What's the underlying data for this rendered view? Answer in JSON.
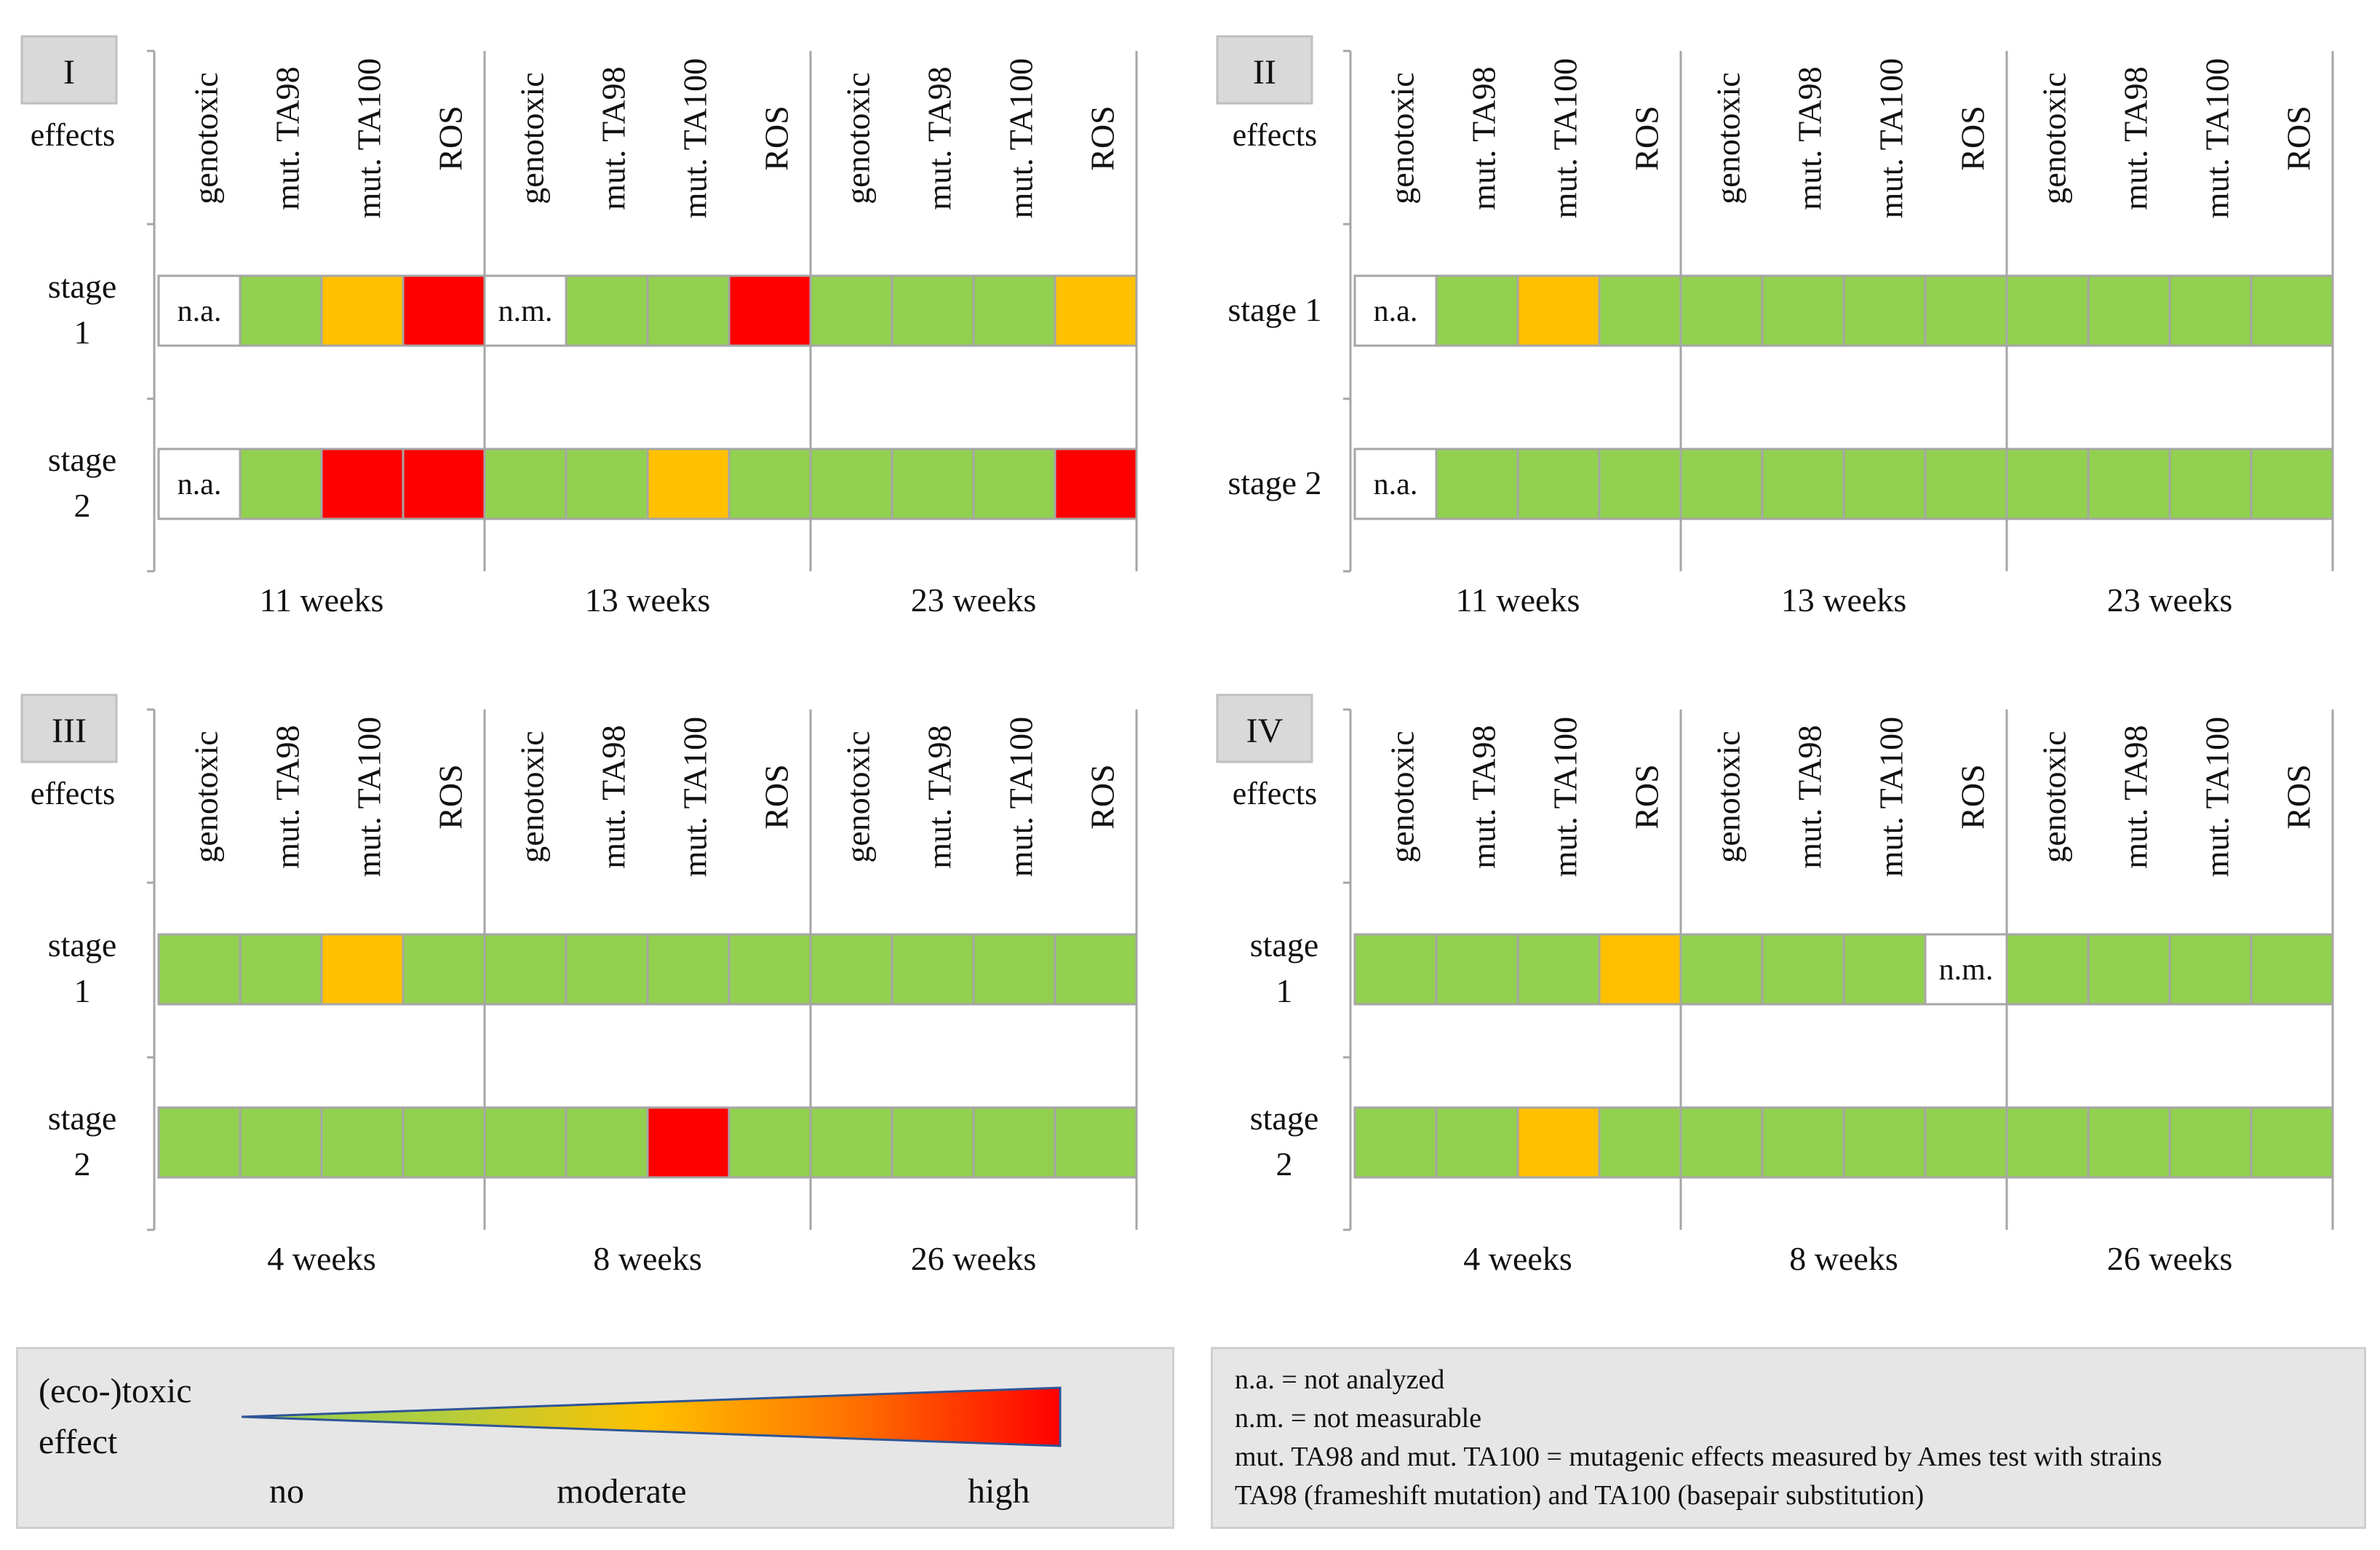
{
  "colors": {
    "none": "#92d050",
    "moderate": "#ffc000",
    "high": "#ff0000",
    "blank": "#ffffff",
    "grid": "#a6a6a6",
    "label_box": "#d9d9d9"
  },
  "effects_label": "effects",
  "stage_labels_split": [
    [
      "stage",
      "1"
    ],
    [
      "stage",
      "2"
    ]
  ],
  "stage_labels_inline": [
    "stage 1",
    "stage 2"
  ],
  "columns": [
    "genotoxic",
    "mut. TA98",
    "mut. TA100",
    "ROS"
  ],
  "chart_data": [
    {
      "type": "heatmap",
      "panel": "I",
      "groups": [
        "11 weeks",
        "13 weeks",
        "23 weeks"
      ],
      "rows": [
        "stage 1",
        "stage 2"
      ],
      "cells": [
        [
          "na",
          "none",
          "moderate",
          "high",
          "nm",
          "none",
          "none",
          "high",
          "none",
          "none",
          "none",
          "moderate"
        ],
        [
          "na",
          "none",
          "high",
          "high",
          "none",
          "none",
          "moderate",
          "none",
          "none",
          "none",
          "none",
          "high"
        ]
      ]
    },
    {
      "type": "heatmap",
      "panel": "II",
      "groups": [
        "11 weeks",
        "13 weeks",
        "23 weeks"
      ],
      "rows": [
        "stage 1",
        "stage 2"
      ],
      "cells": [
        [
          "na",
          "none",
          "moderate",
          "none",
          "none",
          "none",
          "none",
          "none",
          "none",
          "none",
          "none",
          "none"
        ],
        [
          "na",
          "none",
          "none",
          "none",
          "none",
          "none",
          "none",
          "none",
          "none",
          "none",
          "none",
          "none"
        ]
      ]
    },
    {
      "type": "heatmap",
      "panel": "III",
      "groups": [
        "4 weeks",
        "8 weeks",
        "26 weeks"
      ],
      "rows": [
        "stage 1",
        "stage 2"
      ],
      "cells": [
        [
          "none",
          "none",
          "moderate",
          "none",
          "none",
          "none",
          "none",
          "none",
          "none",
          "none",
          "none",
          "none"
        ],
        [
          "none",
          "none",
          "none",
          "none",
          "none",
          "none",
          "high",
          "none",
          "none",
          "none",
          "none",
          "none"
        ]
      ]
    },
    {
      "type": "heatmap",
      "panel": "IV",
      "groups": [
        "4 weeks",
        "8 weeks",
        "26 weeks"
      ],
      "rows": [
        "stage 1",
        "stage 2"
      ],
      "cells": [
        [
          "none",
          "none",
          "none",
          "moderate",
          "none",
          "none",
          "none",
          "nm",
          "none",
          "none",
          "none",
          "none"
        ],
        [
          "none",
          "none",
          "moderate",
          "none",
          "none",
          "none",
          "none",
          "none",
          "none",
          "none",
          "none",
          "none"
        ]
      ]
    }
  ],
  "cell_text": {
    "na": "n.a.",
    "nm": "n.m."
  },
  "legend": {
    "title_line1": "(eco-)toxic",
    "title_line2": "effect",
    "no": "no",
    "moderate": "moderate",
    "high": "high"
  },
  "notes": [
    "n.a. = not analyzed",
    "n.m. = not measurable",
    "mut. TA98 and mut. TA100 = mutagenic effects measured by Ames test with strains",
    "TA98 (frameshift mutation) and TA100 (basepair substitution)"
  ]
}
